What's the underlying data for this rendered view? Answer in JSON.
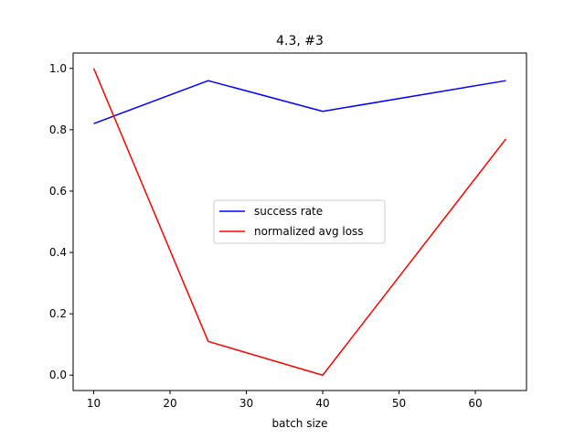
{
  "chart_data": {
    "type": "line",
    "title": "4.3, #3",
    "xlabel": "batch size",
    "ylabel": "",
    "x": [
      10,
      25,
      40,
      64
    ],
    "xlim": [
      7.3,
      66.7
    ],
    "ylim": [
      -0.05,
      1.05
    ],
    "xticks": [
      10,
      20,
      30,
      40,
      50,
      60
    ],
    "yticks": [
      0.0,
      0.2,
      0.4,
      0.6,
      0.8,
      1.0
    ],
    "xtick_labels": [
      "10",
      "20",
      "30",
      "40",
      "50",
      "60"
    ],
    "ytick_labels": [
      "0.0",
      "0.2",
      "0.4",
      "0.6",
      "0.8",
      "1.0"
    ],
    "grid": false,
    "legend_position": "center",
    "series": [
      {
        "name": "success rate",
        "color": "#0000ff",
        "values": [
          0.82,
          0.96,
          0.86,
          0.96
        ]
      },
      {
        "name": "normalized avg loss",
        "color": "#ff0000",
        "values": [
          1.0,
          0.11,
          0.0,
          0.77
        ]
      }
    ]
  }
}
